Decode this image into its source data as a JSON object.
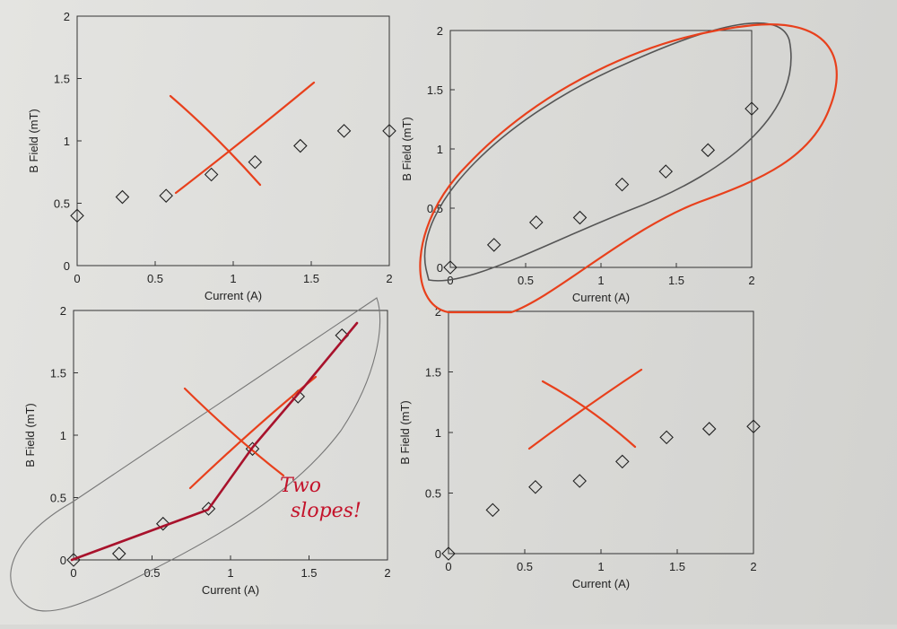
{
  "chart_data": [
    {
      "type": "scatter",
      "marker": "diamond",
      "xlabel": "Current (A)",
      "ylabel": "B Field (mT)",
      "xlim": [
        0,
        2
      ],
      "ylim": [
        0,
        2
      ],
      "xticks": [
        "0",
        "0.5",
        "1",
        "1.5",
        "2"
      ],
      "yticks": [
        "0",
        "0.5",
        "1",
        "1.5",
        "2"
      ],
      "x": [
        0,
        0.29,
        0.57,
        0.86,
        1.14,
        1.43,
        1.71,
        2.0
      ],
      "y": [
        0.4,
        0.55,
        0.56,
        0.73,
        0.83,
        0.96,
        1.08,
        1.08
      ],
      "annotation": "crossed out"
    },
    {
      "type": "scatter",
      "marker": "diamond",
      "xlabel": "Current (A)",
      "ylabel": "B Field (mT)",
      "xlim": [
        0,
        2
      ],
      "ylim": [
        0,
        2
      ],
      "xticks": [
        "0",
        "0.5",
        "1",
        "1.5",
        "2"
      ],
      "yticks": [
        "0",
        "0.5",
        "1",
        "1.5",
        "2"
      ],
      "x": [
        0,
        0.29,
        0.57,
        0.86,
        1.14,
        1.43,
        1.71,
        2.0
      ],
      "y": [
        0.0,
        0.19,
        0.38,
        0.42,
        0.7,
        0.81,
        0.99,
        1.34
      ],
      "annotation": "circled"
    },
    {
      "type": "scatter",
      "marker": "diamond",
      "xlabel": "Current (A)",
      "ylabel": "B Field (mT)",
      "xlim": [
        0,
        2
      ],
      "ylim": [
        0,
        2
      ],
      "xticks": [
        "0",
        "0.5",
        "1",
        "1.5",
        "2"
      ],
      "yticks": [
        "0",
        "0.5",
        "1",
        "1.5",
        "2"
      ],
      "x": [
        0,
        0.29,
        0.57,
        0.86,
        1.14,
        1.43,
        1.71
      ],
      "y": [
        0.0,
        0.05,
        0.29,
        0.41,
        0.89,
        1.31,
        1.8
      ],
      "annotation": "Two slopes!"
    },
    {
      "type": "scatter",
      "marker": "diamond",
      "xlabel": "Current (A)",
      "ylabel": "B Field (mT)",
      "xlim": [
        0,
        2
      ],
      "ylim": [
        0,
        2
      ],
      "xticks": [
        "0",
        "0.5",
        "1",
        "1.5",
        "2"
      ],
      "yticks": [
        "0",
        "0.5",
        "1",
        "1.5",
        "2"
      ],
      "x": [
        0,
        0.29,
        0.57,
        0.86,
        1.14,
        1.43,
        1.71,
        2.0
      ],
      "y": [
        0.0,
        0.36,
        0.55,
        0.6,
        0.76,
        0.96,
        1.03,
        1.05
      ],
      "annotation": "crossed out"
    }
  ],
  "handwriting": {
    "bottom_left_note_line1": "Two",
    "bottom_left_note_line2": "slopes!"
  },
  "colors": {
    "red_pen": "#e8401c",
    "dark_red_pen": "#a8122c",
    "pencil": "#555555"
  }
}
